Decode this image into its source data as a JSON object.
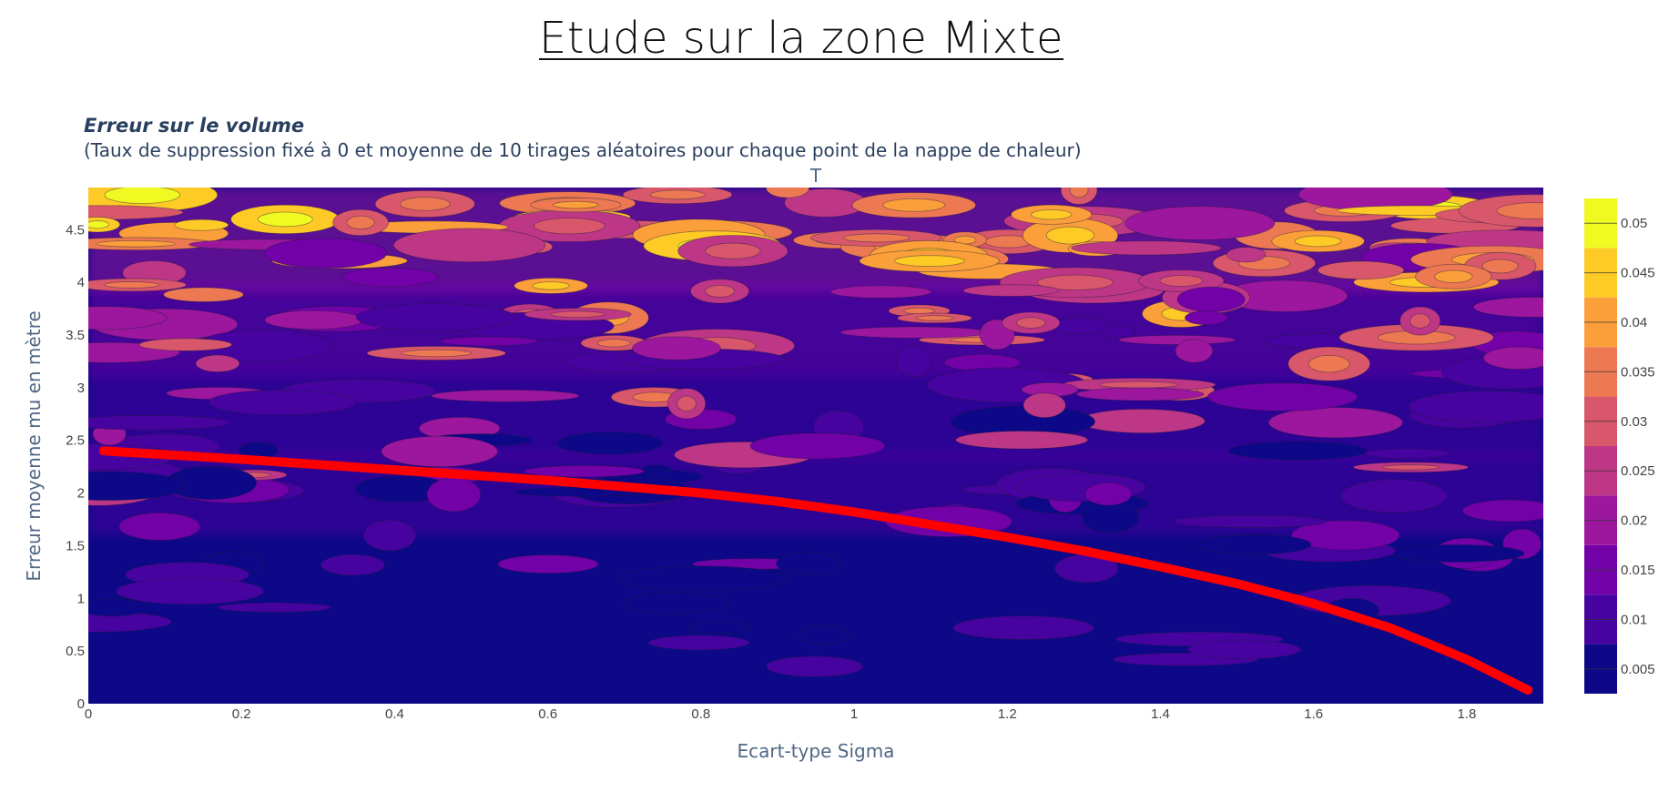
{
  "page": {
    "title": "Etude sur la zone Mixte"
  },
  "chart_data": {
    "type": "contour",
    "title_bold": "Erreur sur le volume",
    "title_rest": " (Taux de suppression fixé à 0 et moyenne de 10 tirages aléatoires pour chaque point de la nappe de chaleur)",
    "plot_label": "T",
    "xlabel": "Ecart-type Sigma",
    "ylabel": "Erreur moyenne mu en mètre",
    "xlim": [
      0,
      1.9
    ],
    "ylim": [
      0,
      4.9
    ],
    "x_ticks": [
      "0",
      "0.2",
      "0.4",
      "0.6",
      "0.8",
      "1",
      "1.2",
      "1.4",
      "1.6",
      "1.8"
    ],
    "y_ticks": [
      "0",
      "0.5",
      "1",
      "1.5",
      "2",
      "2.5",
      "3",
      "3.5",
      "4",
      "4.5"
    ],
    "colorbar": {
      "ticks": [
        "0.005",
        "0.01",
        "0.015",
        "0.02",
        "0.025",
        "0.03",
        "0.035",
        "0.04",
        "0.045",
        "0.05"
      ],
      "range": [
        0.0025,
        0.0525
      ],
      "colorscale": [
        "#0d0887",
        "#46039f",
        "#7201a8",
        "#9c179e",
        "#bd3786",
        "#d8576b",
        "#ed7953",
        "#fb9f3a",
        "#fdca26",
        "#f0f921"
      ]
    },
    "red_curve": {
      "color": "#ff0000",
      "x": [
        0.02,
        0.2,
        0.4,
        0.6,
        0.8,
        0.9,
        1.0,
        1.1,
        1.2,
        1.3,
        1.4,
        1.5,
        1.6,
        1.7,
        1.8,
        1.88
      ],
      "y": [
        2.4,
        2.32,
        2.22,
        2.12,
        2.0,
        1.92,
        1.82,
        1.7,
        1.58,
        1.45,
        1.3,
        1.14,
        0.95,
        0.72,
        0.42,
        0.13
      ]
    }
  }
}
